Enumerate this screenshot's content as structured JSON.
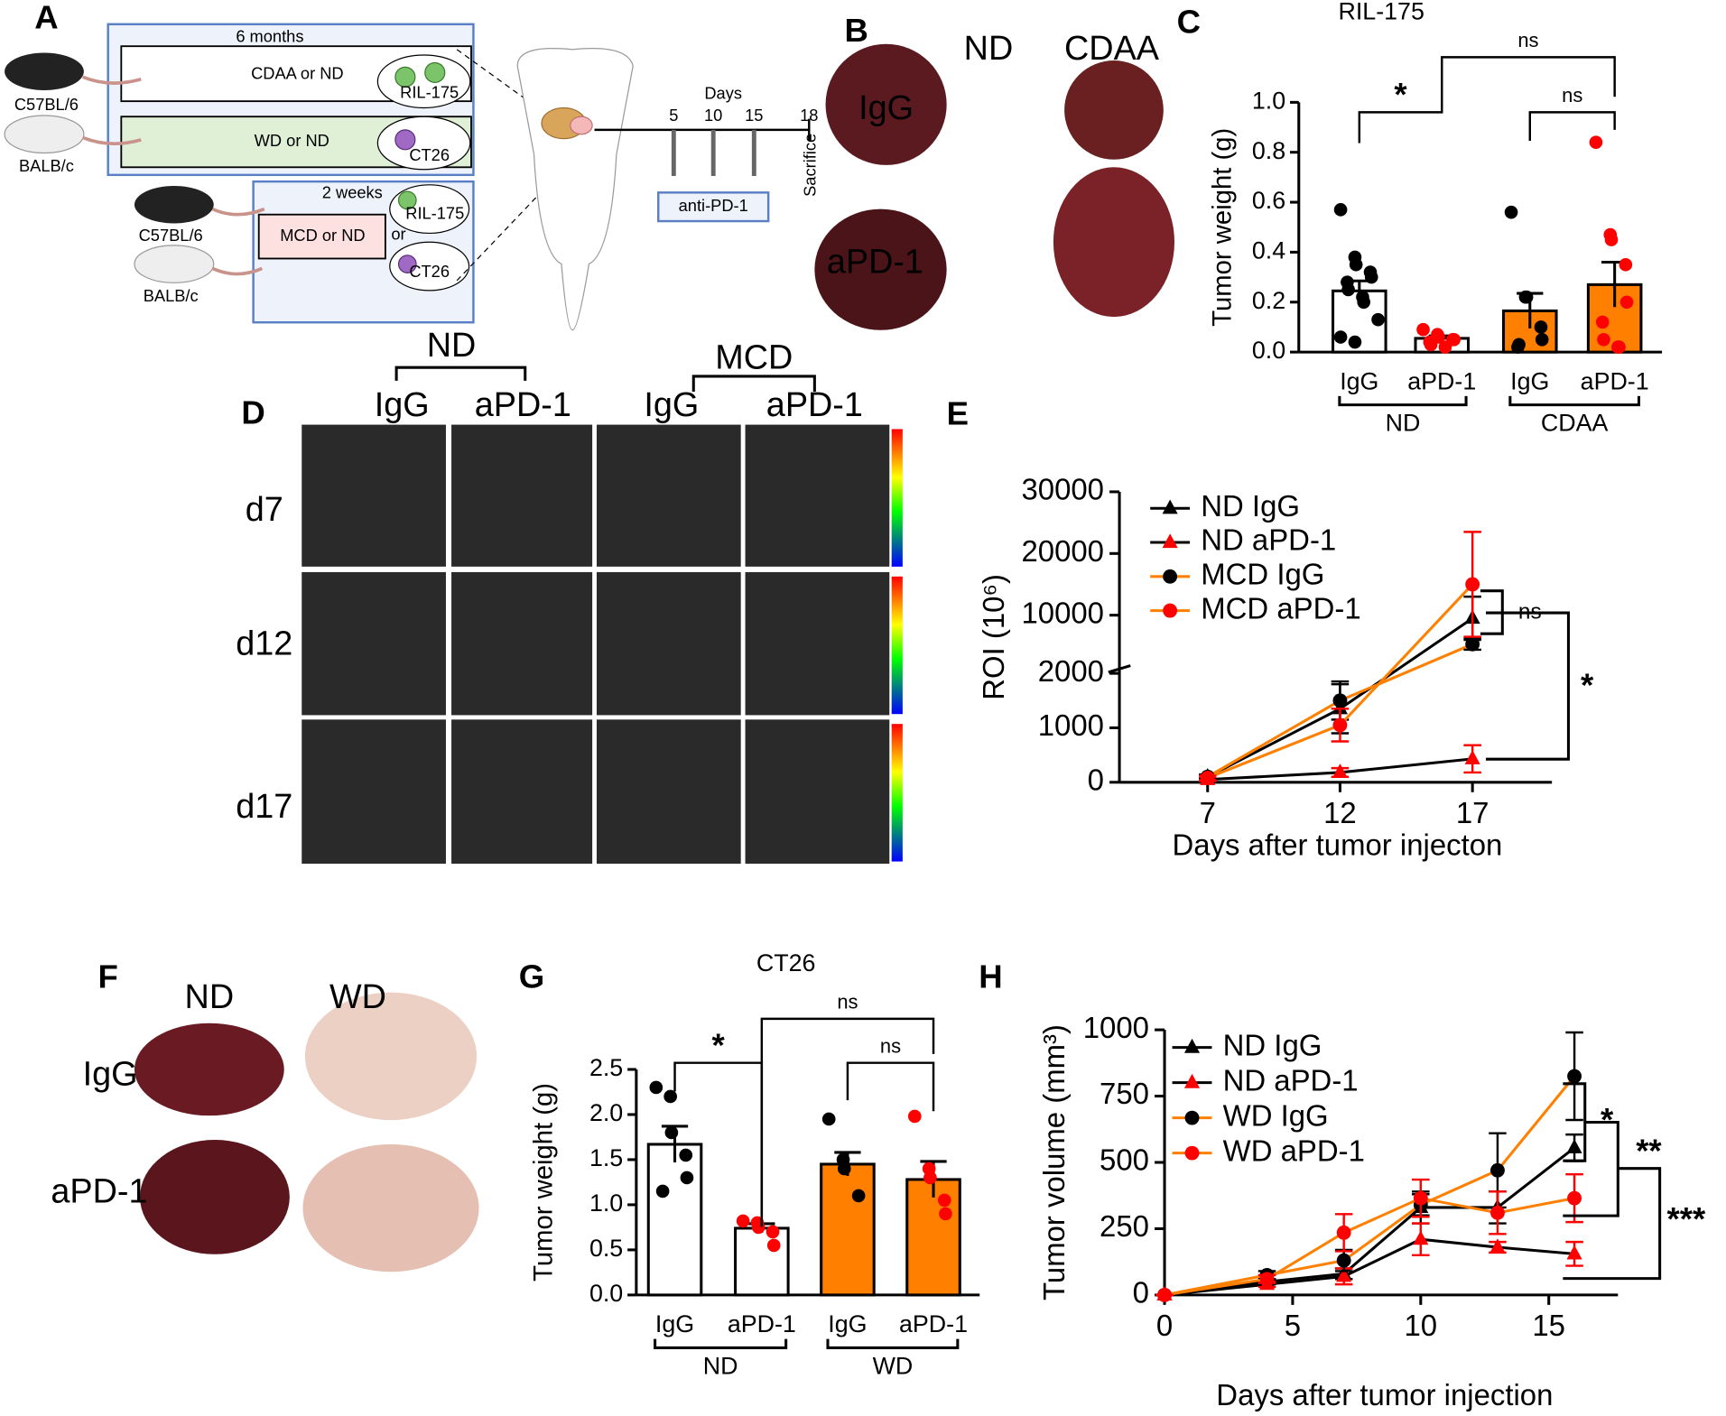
{
  "panel_labels": [
    "A",
    "B",
    "C",
    "D",
    "E",
    "F",
    "G",
    "H"
  ],
  "diagram": {
    "labels": [
      "6 months",
      "CDAA or ND",
      "RIL-175",
      "C57BL/6",
      "WD or ND",
      "CT26",
      "BALB/c",
      "2 weeks",
      "MCD or ND",
      "or",
      "RIL-175",
      "CT26",
      "C57BL/6",
      "BALB/c",
      "Days",
      "5",
      "10",
      "15",
      "18",
      "Sacrifice",
      "anti-PD-1"
    ]
  },
  "photo_b": {
    "columns": [
      "ND",
      "CDAA"
    ],
    "rows": [
      "IgG",
      "aPD-1"
    ]
  },
  "photo_d": {
    "groups": [
      "ND",
      "MCD"
    ],
    "columns": [
      "IgG",
      "aPD-1",
      "IgG",
      "aPD-1"
    ],
    "rows": [
      "d7",
      "d12",
      "d17"
    ]
  },
  "photo_f": {
    "columns": [
      "ND",
      "WD"
    ],
    "rows": [
      "IgG",
      "aPD-1"
    ]
  },
  "chart_data": [
    {
      "type": "bar",
      "title": "RIL-175",
      "ylabel": "Tumor weight (g)",
      "categories": [
        "IgG",
        "aPD-1",
        "IgG",
        "aPD-1"
      ],
      "groups": [
        "ND",
        "CDAA"
      ],
      "values": [
        0.245,
        0.055,
        0.165,
        0.27
      ],
      "errors": [
        0.04,
        0.01,
        0.07,
        0.09
      ],
      "bar_colors": [
        "#ffffff",
        "#ffffff",
        "#ff8000",
        "#ff8000"
      ],
      "point_colors": [
        "#000000",
        "#ff0000",
        "#000000",
        "#ff0000"
      ],
      "points": [
        [
          0.57,
          0.38,
          0.35,
          0.32,
          0.3,
          0.28,
          0.25,
          0.22,
          0.2,
          0.13,
          0.06,
          0.04
        ],
        [
          0.09,
          0.07,
          0.06,
          0.05,
          0.05,
          0.04,
          0.03,
          0.02
        ],
        [
          0.56,
          0.22,
          0.22,
          0.1,
          0.05,
          0.02,
          0.03
        ],
        [
          0.84,
          0.47,
          0.45,
          0.35,
          0.2,
          0.12,
          0.05,
          0.02,
          0.02
        ]
      ],
      "ylim": [
        0,
        1.0
      ],
      "yticks": [
        {
          "value": 0,
          "label": "0.0"
        },
        {
          "value": 0.2,
          "label": "0.2"
        },
        {
          "value": 0.4,
          "label": "0.4"
        },
        {
          "value": 0.6,
          "label": "0.6"
        },
        {
          "value": 0.8,
          "label": "0.8"
        },
        {
          "value": 1.0,
          "label": "1.0"
        }
      ],
      "annotations": [
        "*",
        "ns",
        "ns"
      ]
    },
    {
      "type": "line",
      "xlabel": "Days after tumor injecton",
      "ylabel": "ROI (10⁶)",
      "x": [
        7,
        12,
        17
      ],
      "xlim": [
        3.67,
        20
      ],
      "xticks": [
        7,
        12,
        17
      ],
      "ylim_lower": [
        0,
        2000
      ],
      "ylim_upper": [
        2000,
        30000
      ],
      "yticks": [
        0,
        1000,
        2000,
        10000,
        20000,
        30000
      ],
      "series": [
        {
          "name": "ND IgG",
          "color": "#000000",
          "marker_color": "#000000",
          "marker": "triangle",
          "values": [
            100,
            1350,
            9500
          ],
          "errors": [
            40,
            450,
            3500
          ]
        },
        {
          "name": "ND aPD-1",
          "color": "#000000",
          "marker_color": "#ff0000",
          "marker": "triangle",
          "values": [
            50,
            180,
            430
          ],
          "errors": [
            30,
            80,
            250
          ]
        },
        {
          "name": "MCD IgG",
          "color": "#ff8000",
          "marker_color": "#000000",
          "marker": "circle",
          "values": [
            100,
            1500,
            5300
          ],
          "errors": [
            40,
            350,
            900
          ]
        },
        {
          "name": "MCD aPD-1",
          "color": "#ff8000",
          "marker_color": "#ff0000",
          "marker": "circle",
          "values": [
            80,
            1050,
            15000
          ],
          "errors": [
            40,
            300,
            8500
          ]
        }
      ],
      "annotations": [
        "ns",
        "*"
      ]
    },
    {
      "type": "bar",
      "title": "CT26",
      "ylabel": "Tumor weight (g)",
      "categories": [
        "IgG",
        "aPD-1",
        "IgG",
        "aPD-1"
      ],
      "groups": [
        "ND",
        "WD"
      ],
      "values": [
        1.67,
        0.74,
        1.45,
        1.28
      ],
      "errors": [
        0.2,
        0.05,
        0.13,
        0.2
      ],
      "bar_colors": [
        "#ffffff",
        "#ffffff",
        "#ff8000",
        "#ff8000"
      ],
      "point_colors": [
        "#000000",
        "#ff0000",
        "#000000",
        "#ff0000"
      ],
      "points": [
        [
          2.3,
          2.2,
          1.8,
          1.55,
          1.3,
          1.15
        ],
        [
          0.82,
          0.8,
          0.75,
          0.7,
          0.55
        ],
        [
          1.95,
          1.5,
          1.4,
          1.1
        ],
        [
          1.98,
          1.4,
          1.3,
          1.05,
          0.9
        ]
      ],
      "ylim": [
        0,
        2.5
      ],
      "yticks": [
        {
          "value": 0,
          "label": "0.0"
        },
        {
          "value": 0.5,
          "label": "0.5"
        },
        {
          "value": 1.0,
          "label": "1.0"
        },
        {
          "value": 1.5,
          "label": "1.5"
        },
        {
          "value": 2.0,
          "label": "2.0"
        },
        {
          "value": 2.5,
          "label": "2.5"
        }
      ],
      "annotations": [
        "*",
        "ns",
        "ns"
      ]
    },
    {
      "type": "line",
      "xlabel": "Days after tumor injection",
      "ylabel": "Tumor volume (mm³)",
      "x": [
        0,
        4,
        7,
        10,
        13,
        16
      ],
      "xlim": [
        0,
        17.7
      ],
      "xticks": [
        0,
        5,
        10,
        15
      ],
      "ylim": [
        0,
        1000
      ],
      "yticks": [
        0,
        250,
        500,
        750,
        1000
      ],
      "series": [
        {
          "name": "ND IgG",
          "color": "#000000",
          "marker_color": "#000000",
          "marker": "triangle",
          "values": [
            0,
            50,
            80,
            330,
            330,
            555
          ],
          "errors": [
            0,
            10,
            20,
            60,
            60,
            50
          ]
        },
        {
          "name": "ND aPD-1",
          "color": "#000000",
          "marker_color": "#ff0000",
          "marker": "triangle",
          "values": [
            0,
            40,
            70,
            210,
            180,
            155
          ],
          "errors": [
            0,
            10,
            30,
            60,
            20,
            45
          ]
        },
        {
          "name": "WD IgG",
          "color": "#ff8000",
          "marker_color": "#000000",
          "marker": "circle",
          "values": [
            0,
            75,
            130,
            340,
            470,
            825
          ],
          "errors": [
            0,
            15,
            40,
            40,
            140,
            165
          ]
        },
        {
          "name": "WD aPD-1",
          "color": "#ff8000",
          "marker_color": "#ff0000",
          "marker": "circle",
          "values": [
            0,
            60,
            235,
            365,
            310,
            365
          ],
          "errors": [
            0,
            15,
            70,
            70,
            80,
            90
          ]
        }
      ],
      "annotations": [
        "*",
        "**",
        "***"
      ]
    }
  ]
}
